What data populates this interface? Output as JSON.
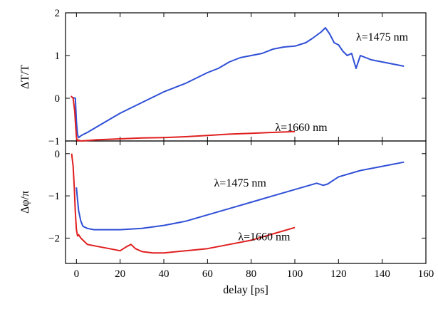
{
  "chart_data": {
    "type": "line",
    "xlabel": "delay [ps]",
    "xlim": [
      -5,
      160
    ],
    "x_ticks": [
      0,
      20,
      40,
      60,
      80,
      100,
      120,
      140,
      160
    ],
    "panels": [
      {
        "name": "top",
        "ylabel": "ΔT/T",
        "ylim": [
          -1,
          2
        ],
        "y_ticks": [
          -1,
          0,
          1,
          2
        ],
        "series": [
          {
            "name": "λ=1475 nm",
            "color": "#2f4fd6",
            "x": [
              -2,
              -0.5,
              0,
              0.5,
              1,
              2,
              3,
              5,
              10,
              15,
              20,
              30,
              40,
              50,
              60,
              65,
              70,
              75,
              80,
              85,
              90,
              95,
              100,
              105,
              108,
              112,
              114,
              116,
              118,
              120,
              122,
              124,
              126,
              128,
              130,
              135,
              140,
              145,
              150
            ],
            "y": [
              0.02,
              0.0,
              -0.55,
              -0.85,
              -0.92,
              -0.88,
              -0.85,
              -0.8,
              -0.65,
              -0.5,
              -0.35,
              -0.1,
              0.15,
              0.35,
              0.6,
              0.7,
              0.85,
              0.95,
              1.0,
              1.05,
              1.15,
              1.2,
              1.22,
              1.3,
              1.4,
              1.55,
              1.65,
              1.5,
              1.3,
              1.25,
              1.1,
              1.0,
              1.05,
              0.7,
              1.0,
              0.9,
              0.85,
              0.8,
              0.75
            ]
          },
          {
            "name": "λ=1660 nm",
            "color": "#e01f1f",
            "x": [
              -2.5,
              -1.5,
              -0.8,
              -0.3,
              0,
              0.3,
              0.6,
              1,
              2,
              5,
              10,
              20,
              30,
              40,
              50,
              60,
              70,
              80,
              90,
              100
            ],
            "y": [
              0.05,
              0.0,
              -0.3,
              -0.7,
              -0.9,
              -0.98,
              -1.0,
              -0.98,
              -1.0,
              -0.99,
              -0.97,
              -0.95,
              -0.93,
              -0.92,
              -0.9,
              -0.87,
              -0.84,
              -0.82,
              -0.8,
              -0.78
            ]
          }
        ],
        "annotations": [
          {
            "text": "λ=1475 nm",
            "x": 128,
            "y": 1.35
          },
          {
            "text": "λ=1660 nm",
            "x": 91,
            "y": -0.77
          }
        ]
      },
      {
        "name": "bottom",
        "ylabel": "Δφ/π",
        "ylim": [
          -2.6,
          0.3
        ],
        "y_ticks": [
          -2,
          -1,
          0
        ],
        "series": [
          {
            "name": "λ=1475 nm",
            "color": "#2f4fd6",
            "x": [
              0,
              0.5,
              1,
              2,
              3,
              5,
              8,
              10,
              20,
              30,
              40,
              50,
              60,
              70,
              80,
              90,
              100,
              110,
              113,
              115,
              120,
              130,
              140,
              150
            ],
            "y": [
              -0.8,
              -1.1,
              -1.35,
              -1.6,
              -1.72,
              -1.77,
              -1.8,
              -1.8,
              -1.8,
              -1.77,
              -1.7,
              -1.6,
              -1.45,
              -1.3,
              -1.15,
              -1.0,
              -0.85,
              -0.7,
              -0.75,
              -0.72,
              -0.55,
              -0.4,
              -0.3,
              -0.2
            ]
          },
          {
            "name": "λ=1660 nm",
            "color": "#e01f1f",
            "x": [
              -2.2,
              -1.5,
              -1,
              -0.5,
              0,
              0.5,
              1,
              2,
              5,
              10,
              15,
              20,
              23,
              25,
              27,
              30,
              35,
              40,
              50,
              60,
              70,
              80,
              90,
              100
            ],
            "y": [
              0.0,
              -0.3,
              -0.8,
              -1.4,
              -1.8,
              -1.95,
              -1.92,
              -2.0,
              -2.15,
              -2.2,
              -2.25,
              -2.3,
              -2.2,
              -2.15,
              -2.25,
              -2.32,
              -2.35,
              -2.35,
              -2.3,
              -2.25,
              -2.15,
              -2.05,
              -1.9,
              -1.75
            ]
          }
        ],
        "annotations": [
          {
            "text": "λ=1475 nm",
            "x": 63,
            "y": -0.78
          },
          {
            "text": "λ=1660 nm",
            "x": 74,
            "y": -2.05
          }
        ]
      }
    ]
  }
}
